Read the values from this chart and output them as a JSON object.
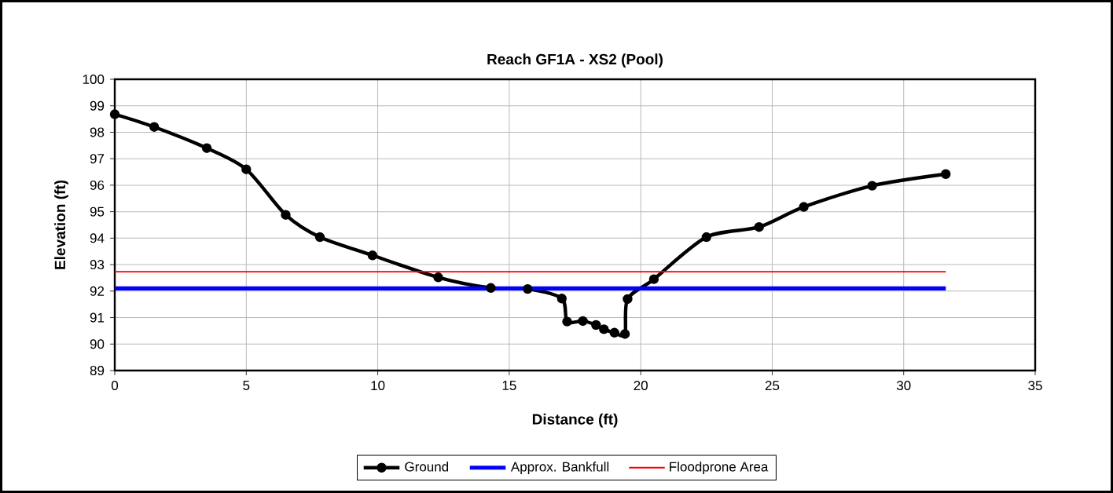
{
  "chart_data": {
    "type": "line",
    "title": "Reach GF1A - XS2 (Pool)",
    "xlabel": "Distance (ft)",
    "ylabel": "Elevation (ft)",
    "series": [
      {
        "name": "Ground",
        "color": "#000000",
        "marker": "circle",
        "x": [
          0,
          1.5,
          3.5,
          5.0,
          6.5,
          7.8,
          9.8,
          12.3,
          14.3,
          15.7,
          17.0,
          17.2,
          17.8,
          18.3,
          18.6,
          19.0,
          19.4,
          19.5,
          20.5,
          22.5,
          24.5,
          26.2,
          28.8,
          31.6
        ],
        "values": [
          98.68,
          98.2,
          97.4,
          96.6,
          94.88,
          94.04,
          93.35,
          92.52,
          92.12,
          92.08,
          91.72,
          90.85,
          90.87,
          90.72,
          90.56,
          90.43,
          90.38,
          91.7,
          92.45,
          94.04,
          94.42,
          95.18,
          95.98,
          96.42
        ]
      },
      {
        "name": "Approx. Bankfull",
        "color": "#0000ff",
        "marker": "none",
        "x": [
          0,
          31.6
        ],
        "values": [
          92.1,
          92.1
        ]
      },
      {
        "name": "Floodprone Area",
        "color": "#ff0000",
        "marker": "none",
        "x": [
          0,
          31.6
        ],
        "values": [
          92.73,
          92.73
        ]
      }
    ],
    "xlim": [
      0,
      35
    ],
    "ylim": [
      89,
      100
    ],
    "xticks": [
      0,
      5,
      10,
      15,
      20,
      25,
      30,
      35
    ],
    "yticks": [
      89,
      90,
      91,
      92,
      93,
      94,
      95,
      96,
      97,
      98,
      99,
      100
    ],
    "grid": true,
    "legend": "bottom"
  }
}
